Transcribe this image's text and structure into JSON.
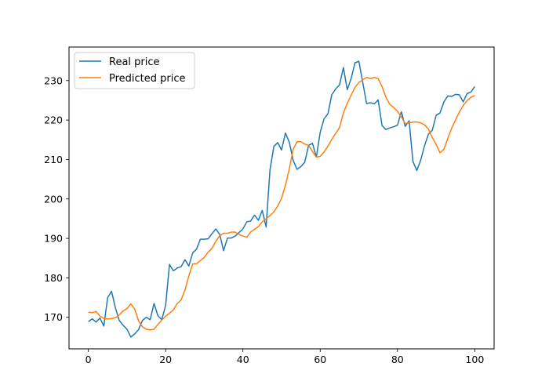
{
  "chart_data": {
    "type": "line",
    "title": "",
    "xlabel": "",
    "ylabel": "",
    "xlim": [
      -5,
      105
    ],
    "ylim": [
      162,
      238.5
    ],
    "xticks": [
      0,
      20,
      40,
      60,
      80,
      100
    ],
    "yticks": [
      170,
      180,
      190,
      200,
      210,
      220,
      230
    ],
    "grid": false,
    "legend_position": "top-left",
    "series": [
      {
        "name": "Real price",
        "color": "#1f77b4",
        "x": [
          0,
          1,
          2,
          3,
          4,
          5,
          6,
          7,
          8,
          9,
          10,
          11,
          12,
          13,
          14,
          15,
          16,
          17,
          18,
          19,
          20,
          21,
          22,
          23,
          24,
          25,
          26,
          27,
          28,
          29,
          30,
          31,
          32,
          33,
          34,
          35,
          36,
          37,
          38,
          39,
          40,
          41,
          42,
          43,
          44,
          45,
          46,
          47,
          48,
          49,
          50,
          51,
          52,
          53,
          54,
          55,
          56,
          57,
          58,
          59,
          60,
          61,
          62,
          63,
          64,
          65,
          66,
          67,
          68,
          69,
          70,
          71,
          72,
          73,
          74,
          75,
          76,
          77,
          78,
          79,
          80,
          81,
          82,
          83,
          84,
          85,
          86,
          87,
          88,
          89,
          90,
          91,
          92,
          93,
          94,
          95,
          96,
          97,
          98,
          99,
          100
        ],
        "values": [
          168.9,
          169.6,
          168.8,
          169.8,
          167.8,
          175.0,
          176.6,
          172.4,
          169.2,
          168.0,
          167.0,
          165.0,
          165.8,
          166.9,
          169.2,
          170.0,
          169.4,
          173.5,
          170.4,
          169.4,
          173.0,
          183.4,
          181.8,
          182.5,
          182.8,
          184.6,
          183.0,
          186.3,
          187.3,
          189.8,
          189.8,
          189.9,
          191.2,
          192.4,
          191.0,
          186.9,
          190.1,
          190.1,
          190.6,
          191.5,
          192.4,
          194.2,
          194.4,
          195.9,
          194.6,
          197.1,
          192.9,
          207.3,
          213.3,
          214.3,
          212.4,
          216.7,
          214.4,
          209.8,
          207.5,
          208.2,
          209.3,
          213.6,
          214.1,
          210.6,
          216.9,
          220.3,
          221.6,
          226.4,
          227.9,
          228.9,
          233.3,
          227.7,
          230.5,
          234.5,
          234.9,
          229.6,
          224.2,
          224.4,
          224.1,
          225.1,
          218.6,
          217.6,
          218.0,
          218.3,
          218.7,
          222.1,
          218.4,
          219.8,
          209.5,
          207.2,
          209.8,
          213.5,
          216.4,
          217.4,
          221.2,
          221.8,
          224.6,
          226.1,
          226.0,
          226.5,
          226.4,
          224.6,
          226.7,
          227.1,
          228.5
        ]
      },
      {
        "name": "Predicted price",
        "color": "#ff7f0e",
        "x": [
          0,
          1,
          2,
          3,
          4,
          5,
          6,
          7,
          8,
          9,
          10,
          11,
          12,
          13,
          14,
          15,
          16,
          17,
          18,
          19,
          20,
          21,
          22,
          23,
          24,
          25,
          26,
          27,
          28,
          29,
          30,
          31,
          32,
          33,
          34,
          35,
          36,
          37,
          38,
          39,
          40,
          41,
          42,
          43,
          44,
          45,
          46,
          47,
          48,
          49,
          50,
          51,
          52,
          53,
          54,
          55,
          56,
          57,
          58,
          59,
          60,
          61,
          62,
          63,
          64,
          65,
          66,
          67,
          68,
          69,
          70,
          71,
          72,
          73,
          74,
          75,
          76,
          77,
          78,
          79,
          80,
          81,
          82,
          83,
          84,
          85,
          86,
          87,
          88,
          89,
          90,
          91,
          92,
          93,
          94,
          95,
          96,
          97,
          98,
          99,
          100
        ],
        "values": [
          171.3,
          171.2,
          171.5,
          170.3,
          169.7,
          169.6,
          169.7,
          169.9,
          170.6,
          171.6,
          172.2,
          173.4,
          172.1,
          169.1,
          167.6,
          167.0,
          166.8,
          167.0,
          168.2,
          169.3,
          170.3,
          171.0,
          171.9,
          173.5,
          174.4,
          176.9,
          180.5,
          183.5,
          183.6,
          184.4,
          185.2,
          186.5,
          187.5,
          189.3,
          190.7,
          191.3,
          191.3,
          191.6,
          191.6,
          191.0,
          190.6,
          190.3,
          191.6,
          192.3,
          193.0,
          194.2,
          195.0,
          195.8,
          196.7,
          198.2,
          200.2,
          203.5,
          207.6,
          212.6,
          214.5,
          214.5,
          213.9,
          213.6,
          212.0,
          210.6,
          210.8,
          211.9,
          213.4,
          215.1,
          216.6,
          218.1,
          221.8,
          224.2,
          226.3,
          228.3,
          229.5,
          230.2,
          230.8,
          230.5,
          230.8,
          230.5,
          228.5,
          225.8,
          224.0,
          223.2,
          222.2,
          220.8,
          219.1,
          219.3,
          219.5,
          219.5,
          219.3,
          218.8,
          217.7,
          215.6,
          213.8,
          211.7,
          212.6,
          215.3,
          217.9,
          220.0,
          222.0,
          223.7,
          224.9,
          225.8,
          226.2
        ]
      }
    ]
  }
}
